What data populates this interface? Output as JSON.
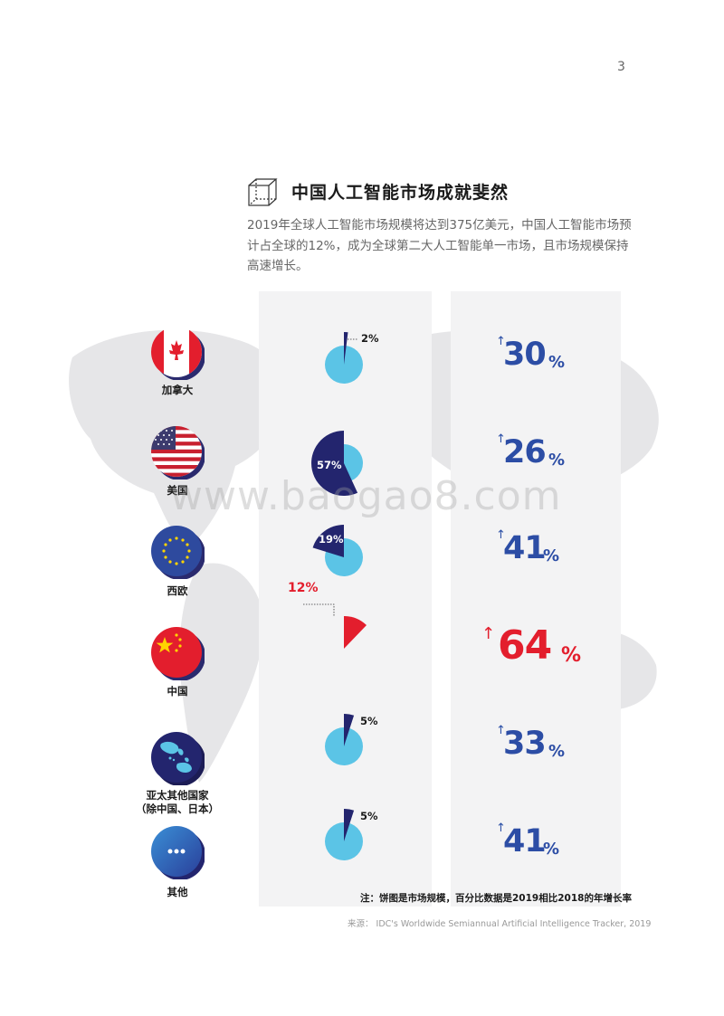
{
  "page_number": "3",
  "section": {
    "title": "中国人工智能市场成就斐然",
    "intro": "2019年全球人工智能市场规模将达到375亿美元，中国人工智能市场预计占全球的12%，成为全球第二大人工智能单一市场，且市场规模保持高速增长。",
    "icon": "cube-icon"
  },
  "regions": [
    {
      "name": "加拿大",
      "flag_icon": "canada-flag-icon",
      "share": 2,
      "share_label": "2%",
      "growth": "30",
      "growth_unit": "%"
    },
    {
      "name": "美国",
      "flag_icon": "usa-flag-icon",
      "share": 57,
      "share_label": "57%",
      "growth": "26",
      "growth_unit": "%"
    },
    {
      "name": "西欧",
      "flag_icon": "eu-flag-icon",
      "share": 19,
      "share_label": "19%",
      "growth": "41",
      "growth_unit": "%"
    },
    {
      "name": "中国",
      "flag_icon": "china-flag-icon",
      "share": 12,
      "share_label": "12%",
      "growth": "64",
      "growth_unit": "%",
      "highlight": true
    },
    {
      "name": "亚太其他国家",
      "name_line2": "（除中国、日本）",
      "flag_icon": "asia-pacific-map-icon",
      "share": 5,
      "share_label": "5%",
      "growth": "33",
      "growth_unit": "%"
    },
    {
      "name": "其他",
      "flag_icon": "ellipsis-icon",
      "share": 5,
      "share_label": "5%",
      "growth": "41",
      "growth_unit": "%"
    }
  ],
  "colors": {
    "navy": "#23256e",
    "light_blue": "#5bc4e6",
    "red": "#e31e2d",
    "growth_blue": "#2c4da5"
  },
  "watermark": "www.baogao8.com",
  "note": "注：饼图是市场规模，百分比数据是2019相比2018的年增长率",
  "source": "来源：   IDC's Worldwide Semiannual Artificial Intelligence Tracker, 2019"
}
